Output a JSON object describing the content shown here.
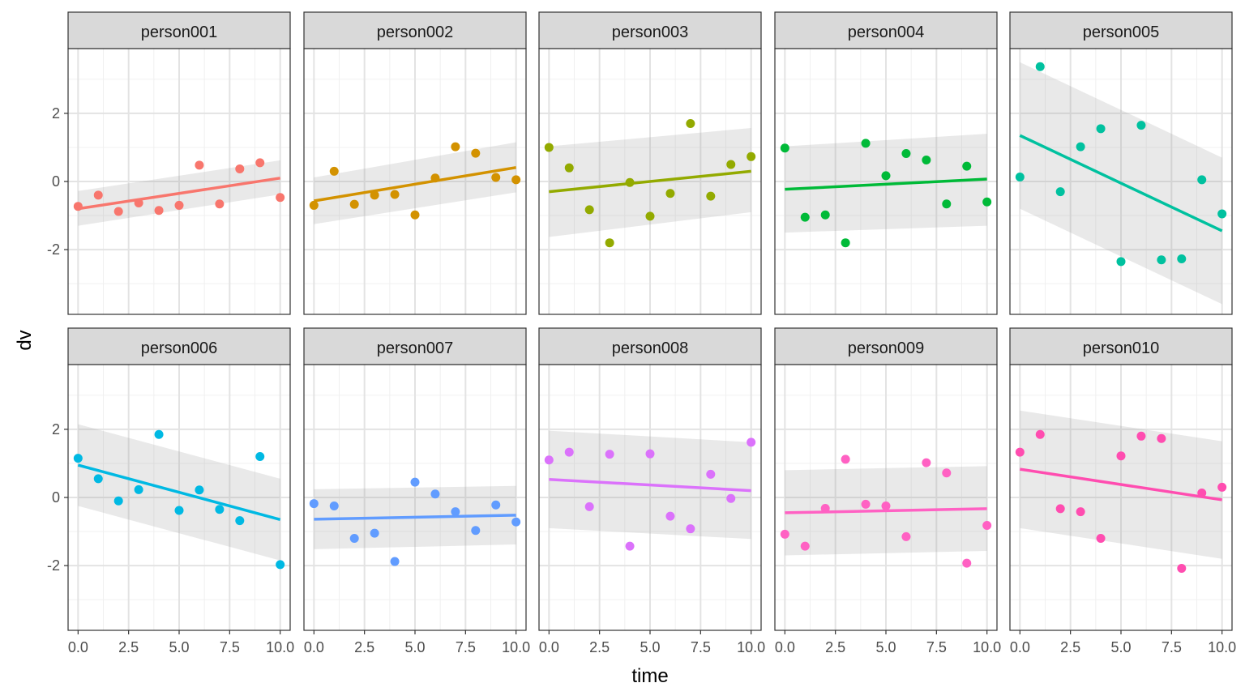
{
  "chart_data": {
    "type": "scatter",
    "facet_layout": "2 rows x 5 columns",
    "xlabel": "time",
    "ylabel": "dv",
    "xlim": [
      0,
      10
    ],
    "ylim": [
      -3.9,
      3.9
    ],
    "x_ticks": [
      0,
      2.5,
      5,
      7.5,
      10
    ],
    "x_tick_labels": [
      "0.0",
      "2.5",
      "5.0",
      "7.5",
      "10.0"
    ],
    "y_ticks": [
      -2,
      0,
      2
    ],
    "y_tick_labels": [
      "-2",
      "0",
      "2"
    ],
    "grid": true,
    "smooth": "linear fit with grey confidence band",
    "legend": "none",
    "facets": [
      {
        "label": "person001",
        "color": "#F8766D",
        "x": [
          0,
          1,
          2,
          3,
          4,
          5,
          6,
          7,
          8,
          9,
          10
        ],
        "y": [
          -0.73,
          -0.4,
          -0.88,
          -0.63,
          -0.85,
          -0.7,
          0.48,
          -0.66,
          0.37,
          0.55,
          -0.47
        ],
        "fit": [
          -0.8,
          0.1
        ],
        "ci_low": [
          -1.3,
          -0.38
        ],
        "ci_high": [
          -0.28,
          0.62
        ]
      },
      {
        "label": "person002",
        "color": "#D39200",
        "x": [
          0,
          1,
          2,
          3,
          4,
          5,
          6,
          7,
          8,
          9,
          10
        ],
        "y": [
          -0.7,
          0.3,
          -0.67,
          -0.4,
          -0.38,
          -0.98,
          0.1,
          1.02,
          0.83,
          0.12,
          0.05
        ],
        "fit": [
          -0.57,
          0.41
        ],
        "ci_low": [
          -1.25,
          -0.32
        ],
        "ci_high": [
          0.12,
          1.15
        ]
      },
      {
        "label": "person003",
        "color": "#93AA00",
        "x": [
          0,
          1,
          2,
          3,
          4,
          5,
          6,
          7,
          8,
          9,
          10
        ],
        "y": [
          1.0,
          0.4,
          -0.83,
          -1.8,
          -0.03,
          -1.02,
          -0.35,
          1.7,
          -0.43,
          0.5,
          0.73
        ],
        "fit": [
          -0.3,
          0.3
        ],
        "ci_low": [
          -1.63,
          -0.9
        ],
        "ci_high": [
          1.03,
          1.57
        ]
      },
      {
        "label": "person004",
        "color": "#00BA38",
        "x": [
          0,
          1,
          2,
          3,
          4,
          5,
          6,
          7,
          8,
          9,
          10
        ],
        "y": [
          0.98,
          -1.05,
          -0.98,
          -1.8,
          1.12,
          0.17,
          0.82,
          0.63,
          -0.66,
          0.45,
          -0.6
        ],
        "fit": [
          -0.23,
          0.07
        ],
        "ci_low": [
          -1.5,
          -1.3
        ],
        "ci_high": [
          1.03,
          1.4
        ]
      },
      {
        "label": "person005",
        "color": "#00C19F",
        "x": [
          0,
          1,
          2,
          3,
          4,
          5,
          6,
          7,
          8,
          9,
          10
        ],
        "y": [
          0.13,
          3.37,
          -0.3,
          1.02,
          1.55,
          -2.35,
          1.65,
          -2.3,
          -2.27,
          0.05,
          -0.95
        ],
        "fit": [
          1.35,
          -1.45
        ],
        "ci_low": [
          -0.8,
          -3.6
        ],
        "ci_high": [
          3.5,
          0.7
        ]
      },
      {
        "label": "person006",
        "color": "#00B9E3",
        "x": [
          0,
          1,
          2,
          3,
          4,
          5,
          6,
          7,
          8,
          9,
          10
        ],
        "y": [
          1.15,
          0.55,
          -0.1,
          0.23,
          1.85,
          -0.38,
          0.22,
          -0.35,
          -0.68,
          1.2,
          -1.97
        ],
        "fit": [
          0.95,
          -0.65
        ],
        "ci_low": [
          -0.25,
          -1.85
        ],
        "ci_high": [
          2.15,
          0.55
        ]
      },
      {
        "label": "person007",
        "color": "#619CFF",
        "x": [
          0,
          1,
          2,
          3,
          4,
          5,
          6,
          7,
          8,
          9,
          10
        ],
        "y": [
          -0.18,
          -0.25,
          -1.2,
          -1.05,
          -1.88,
          0.45,
          0.1,
          -0.42,
          -0.97,
          -0.22,
          -0.72
        ],
        "fit": [
          -0.64,
          -0.52
        ],
        "ci_low": [
          -1.52,
          -1.38
        ],
        "ci_high": [
          0.24,
          0.34
        ]
      },
      {
        "label": "person008",
        "color": "#DB72FB",
        "x": [
          0,
          1,
          2,
          3,
          4,
          5,
          6,
          7,
          8,
          9,
          10
        ],
        "y": [
          1.1,
          1.33,
          -0.27,
          1.27,
          -1.43,
          1.28,
          -0.55,
          -0.92,
          0.68,
          -0.03,
          1.62
        ],
        "fit": [
          0.53,
          0.2
        ],
        "ci_low": [
          -0.9,
          -1.22
        ],
        "ci_high": [
          1.96,
          1.62
        ]
      },
      {
        "label": "person009",
        "color": "#FF61C3",
        "x": [
          0,
          1,
          2,
          3,
          4,
          5,
          6,
          7,
          8,
          9,
          10
        ],
        "y": [
          -1.08,
          -1.43,
          -0.32,
          1.12,
          -0.2,
          -0.25,
          -1.15,
          1.02,
          0.72,
          -1.93,
          -0.82
        ],
        "fit": [
          -0.45,
          -0.33
        ],
        "ci_low": [
          -1.7,
          -1.57
        ],
        "ci_high": [
          0.8,
          0.92
        ]
      },
      {
        "label": "person010",
        "color": "#FF4DB0",
        "x": [
          0,
          1,
          2,
          3,
          4,
          5,
          6,
          7,
          8,
          9,
          10
        ],
        "y": [
          1.33,
          1.85,
          -0.33,
          -0.42,
          -1.2,
          1.22,
          1.8,
          1.73,
          -2.08,
          0.13,
          0.3
        ],
        "fit": [
          0.83,
          -0.07
        ],
        "ci_low": [
          -0.9,
          -1.8
        ],
        "ci_high": [
          2.55,
          1.65
        ]
      }
    ]
  }
}
